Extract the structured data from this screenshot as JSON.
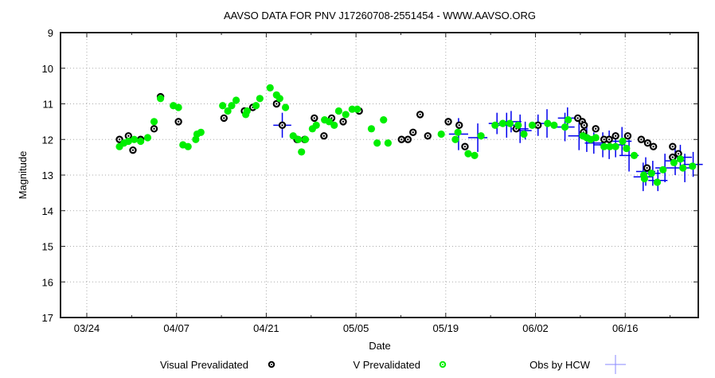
{
  "chart_data": {
    "type": "scatter",
    "title": "AAVSO DATA FOR PNV J17260708-2551454 - WWW.AAVSO.ORG",
    "xlabel": "Date",
    "ylabel": "Magnitude",
    "x_units": "days since 03/24",
    "xlim": [
      -4.1,
      95.4
    ],
    "ylim": [
      17,
      9
    ],
    "y_inverted": true,
    "grid": true,
    "x_ticks": [
      {
        "day": 0,
        "label": "03/24"
      },
      {
        "day": 14,
        "label": "04/07"
      },
      {
        "day": 28,
        "label": "04/21"
      },
      {
        "day": 42,
        "label": "05/05"
      },
      {
        "day": 56,
        "label": "05/19"
      },
      {
        "day": 70,
        "label": "06/02"
      },
      {
        "day": 84,
        "label": "06/16"
      }
    ],
    "x_minor_ticks": [
      7,
      21,
      35,
      49,
      63,
      77,
      91
    ],
    "y_ticks": [
      9,
      10,
      11,
      12,
      13,
      14,
      15,
      16,
      17
    ],
    "legend_position": "bottom",
    "series": [
      {
        "name": "Visual Prevalidated",
        "marker": "black-circle",
        "color": "#000000",
        "points": [
          [
            5.1,
            12.0
          ],
          [
            6.5,
            11.9
          ],
          [
            7.2,
            12.3
          ],
          [
            8.4,
            12.0
          ],
          [
            10.5,
            11.7
          ],
          [
            11.5,
            10.8
          ],
          [
            14.3,
            11.5
          ],
          [
            21.4,
            11.4
          ],
          [
            24.6,
            11.2
          ],
          [
            25.9,
            11.1
          ],
          [
            29.6,
            11.0
          ],
          [
            30.5,
            11.6
          ],
          [
            32.8,
            12.0
          ],
          [
            34.0,
            12.0
          ],
          [
            35.5,
            11.4
          ],
          [
            37.0,
            11.9
          ],
          [
            38.2,
            11.4
          ],
          [
            40.0,
            11.5
          ],
          [
            42.5,
            11.2
          ],
          [
            49.1,
            12.0
          ],
          [
            50.1,
            12.0
          ],
          [
            50.9,
            11.8
          ],
          [
            52.0,
            11.3
          ],
          [
            53.2,
            11.9
          ],
          [
            56.4,
            11.5
          ],
          [
            58.1,
            11.6
          ],
          [
            59.0,
            12.2
          ],
          [
            67.0,
            11.7
          ],
          [
            70.4,
            11.6
          ],
          [
            76.6,
            11.4
          ],
          [
            77.3,
            11.5
          ],
          [
            77.6,
            11.6
          ],
          [
            77.5,
            11.8
          ],
          [
            79.4,
            11.7
          ],
          [
            80.7,
            12.0
          ],
          [
            81.5,
            12.0
          ],
          [
            82.5,
            11.9
          ],
          [
            84.4,
            11.9
          ],
          [
            86.5,
            12.0
          ],
          [
            87.5,
            12.1
          ],
          [
            87.4,
            12.8
          ],
          [
            88.4,
            12.2
          ],
          [
            91.4,
            12.2
          ],
          [
            91.4,
            12.5
          ],
          [
            92.3,
            12.4
          ]
        ]
      },
      {
        "name": "V Prevalidated",
        "marker": "green-circle",
        "color": "#00ee00",
        "points": [
          [
            5.1,
            12.2
          ],
          [
            5.8,
            12.1
          ],
          [
            6.5,
            12.05
          ],
          [
            7.4,
            12.0
          ],
          [
            8.4,
            12.05
          ],
          [
            9.5,
            11.95
          ],
          [
            10.5,
            11.5
          ],
          [
            11.5,
            10.85
          ],
          [
            13.5,
            11.05
          ],
          [
            14.3,
            11.1
          ],
          [
            15.0,
            12.15
          ],
          [
            15.8,
            12.2
          ],
          [
            17.0,
            12.0
          ],
          [
            17.2,
            11.85
          ],
          [
            17.8,
            11.8
          ],
          [
            21.2,
            11.05
          ],
          [
            22.0,
            11.2
          ],
          [
            22.6,
            11.05
          ],
          [
            23.3,
            10.9
          ],
          [
            24.8,
            11.3
          ],
          [
            25.0,
            11.2
          ],
          [
            26.4,
            11.05
          ],
          [
            27.0,
            10.85
          ],
          [
            28.6,
            10.55
          ],
          [
            29.6,
            10.75
          ],
          [
            30.1,
            10.85
          ],
          [
            31.0,
            11.1
          ],
          [
            32.2,
            11.9
          ],
          [
            33.0,
            12.0
          ],
          [
            33.5,
            12.35
          ],
          [
            34.1,
            12.0
          ],
          [
            35.2,
            11.7
          ],
          [
            35.8,
            11.6
          ],
          [
            37.1,
            11.45
          ],
          [
            37.8,
            11.5
          ],
          [
            38.6,
            11.6
          ],
          [
            39.3,
            11.2
          ],
          [
            40.4,
            11.3
          ],
          [
            41.4,
            11.15
          ],
          [
            42.2,
            11.15
          ],
          [
            44.4,
            11.7
          ],
          [
            45.3,
            12.1
          ],
          [
            46.3,
            11.45
          ],
          [
            47.0,
            12.1
          ],
          [
            55.3,
            11.85
          ],
          [
            57.5,
            12.0
          ],
          [
            57.9,
            11.8
          ],
          [
            59.5,
            12.4
          ],
          [
            60.5,
            12.45
          ],
          [
            61.5,
            11.9
          ],
          [
            63.7,
            11.6
          ],
          [
            64.9,
            11.55
          ],
          [
            66.0,
            11.55
          ],
          [
            67.3,
            11.6
          ],
          [
            68.2,
            11.85
          ],
          [
            69.5,
            11.6
          ],
          [
            71.9,
            11.55
          ],
          [
            72.9,
            11.6
          ],
          [
            74.6,
            11.65
          ],
          [
            75.1,
            11.45
          ],
          [
            77.4,
            11.9
          ],
          [
            78.0,
            11.95
          ],
          [
            78.6,
            12.0
          ],
          [
            79.4,
            11.95
          ],
          [
            80.7,
            12.2
          ],
          [
            81.6,
            12.2
          ],
          [
            82.5,
            12.2
          ],
          [
            83.6,
            12.05
          ],
          [
            84.2,
            12.25
          ],
          [
            85.4,
            12.45
          ],
          [
            86.9,
            13.0
          ],
          [
            87.0,
            13.1
          ],
          [
            88.1,
            12.95
          ],
          [
            89.0,
            13.2
          ],
          [
            89.9,
            12.85
          ],
          [
            91.6,
            12.65
          ],
          [
            92.6,
            12.55
          ],
          [
            93.0,
            12.8
          ],
          [
            94.5,
            12.75
          ]
        ]
      },
      {
        "name": "Obs by HCW",
        "marker": "blue-cross",
        "color": "#0000ee",
        "points": [
          {
            "x": 30.5,
            "y": 11.6,
            "xerr": 1.4,
            "yerr": 0.35
          },
          {
            "x": 58.0,
            "y": 11.85,
            "xerr": 1.5,
            "yerr": 0.45
          },
          {
            "x": 61.0,
            "y": 11.95,
            "xerr": 1.5,
            "yerr": 0.4
          },
          {
            "x": 64.0,
            "y": 11.55,
            "xerr": 1.3,
            "yerr": 0.3
          },
          {
            "x": 65.5,
            "y": 11.6,
            "xerr": 1.6,
            "yerr": 0.35
          },
          {
            "x": 66.2,
            "y": 11.5,
            "xerr": 1.6,
            "yerr": 0.3
          },
          {
            "x": 67.6,
            "y": 11.7,
            "xerr": 1.3,
            "yerr": 0.4
          },
          {
            "x": 68.4,
            "y": 11.75,
            "xerr": 1.0,
            "yerr": 0.25
          },
          {
            "x": 70.4,
            "y": 11.6,
            "xerr": 0.5,
            "yerr": 0.3
          },
          {
            "x": 71.8,
            "y": 11.55,
            "xerr": 1.5,
            "yerr": 0.4
          },
          {
            "x": 74.6,
            "y": 11.65,
            "xerr": 1.5,
            "yerr": 0.4
          },
          {
            "x": 75.0,
            "y": 11.4,
            "xerr": 1.5,
            "yerr": 0.3
          },
          {
            "x": 76.8,
            "y": 11.9,
            "xerr": 1.7,
            "yerr": 0.4
          },
          {
            "x": 78.0,
            "y": 11.95,
            "xerr": 1.2,
            "yerr": 0.4
          },
          {
            "x": 79.1,
            "y": 12.1,
            "xerr": 1.4,
            "yerr": 0.3
          },
          {
            "x": 80.5,
            "y": 12.15,
            "xerr": 1.5,
            "yerr": 0.35
          },
          {
            "x": 81.5,
            "y": 12.15,
            "xerr": 1.5,
            "yerr": 0.4
          },
          {
            "x": 82.5,
            "y": 12.15,
            "xerr": 1.5,
            "yerr": 0.35
          },
          {
            "x": 83.5,
            "y": 12.05,
            "xerr": 1.5,
            "yerr": 0.4
          },
          {
            "x": 84.6,
            "y": 12.45,
            "xerr": 1.5,
            "yerr": 0.45
          },
          {
            "x": 86.8,
            "y": 13.05,
            "xerr": 1.5,
            "yerr": 0.4
          },
          {
            "x": 87.2,
            "y": 12.9,
            "xerr": 1.5,
            "yerr": 0.4
          },
          {
            "x": 88.3,
            "y": 12.95,
            "xerr": 1.2,
            "yerr": 0.35
          },
          {
            "x": 89.1,
            "y": 13.15,
            "xerr": 1.5,
            "yerr": 0.3
          },
          {
            "x": 90.2,
            "y": 12.8,
            "xerr": 1.5,
            "yerr": 0.4
          },
          {
            "x": 91.8,
            "y": 12.6,
            "xerr": 1.5,
            "yerr": 0.4
          },
          {
            "x": 92.6,
            "y": 12.5,
            "xerr": 1.8,
            "yerr": 0.35
          },
          {
            "x": 93.3,
            "y": 12.8,
            "xerr": 1.5,
            "yerr": 0.4
          },
          {
            "x": 94.6,
            "y": 12.7,
            "xerr": 1.5,
            "yerr": 0.35
          }
        ]
      }
    ]
  }
}
